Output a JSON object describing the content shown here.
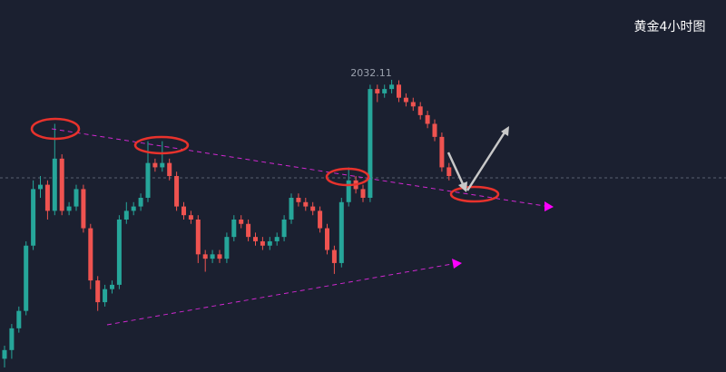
{
  "chart_data": {
    "type": "candlestick",
    "title": "黄金4小时图",
    "open": [
      1968,
      1970,
      1975,
      1979,
      1994,
      2007,
      2008,
      2002,
      2014,
      2002,
      2003,
      2007,
      1998,
      1986,
      1981,
      1984,
      1985,
      2000,
      2002,
      2003,
      2005,
      2013,
      2012,
      2013,
      2010,
      2003,
      2001,
      2000,
      1992,
      1991,
      1992,
      1991,
      1996,
      2000,
      1999,
      1996,
      1995,
      1994,
      1995,
      1996,
      2000,
      2005,
      2004,
      2003,
      2002,
      1998,
      1993,
      1990,
      2004,
      2009,
      2007,
      2005,
      2030,
      2029,
      2030,
      2031,
      2028,
      2027,
      2026,
      2024,
      2022,
      2019,
      2012
    ],
    "high": [
      1971,
      1976,
      1980,
      1995,
      2009,
      2010,
      2009,
      2022,
      2015,
      2004,
      2008,
      2008,
      1999,
      1987,
      1985,
      1986,
      2001,
      2004,
      2004,
      2006,
      2018,
      2014,
      2018,
      2014,
      2011,
      2004,
      2002,
      2001,
      1993,
      1993,
      1993,
      1997,
      2001,
      2001,
      2000,
      1997,
      1996,
      1996,
      1997,
      2001,
      2006,
      2006,
      2005,
      2004,
      2003,
      1999,
      1994,
      2005,
      2012,
      2010,
      2008,
      2031,
      2031,
      2031,
      2032.11,
      2032,
      2029,
      2028,
      2027,
      2025,
      2023,
      2020,
      2013
    ],
    "low": [
      1966,
      1968,
      1974,
      1978,
      1993,
      2005,
      2000,
      2001,
      2001,
      2001,
      2002,
      1997,
      1984,
      1979,
      1980,
      1983,
      1984,
      1999,
      2001,
      2002,
      2004,
      2011,
      2011,
      2009,
      2002,
      2000,
      1999,
      1990,
      1988,
      1990,
      1990,
      1990,
      1995,
      1998,
      1995,
      1994,
      1993,
      1993,
      1994,
      1995,
      1999,
      2003,
      2002,
      2001,
      1997,
      1992,
      1987.5,
      1989,
      2003,
      2006,
      2004,
      2004,
      2027,
      2028,
      2029,
      2027,
      2026,
      2025,
      2023,
      2021,
      2018,
      2011,
      2009
    ],
    "close": [
      1970,
      1975,
      1979,
      1994,
      2007,
      2008,
      2002,
      2014,
      2002,
      2003,
      2007,
      1998,
      1986,
      1981,
      1984,
      1985,
      2000,
      2002,
      2003,
      2005,
      2013,
      2012,
      2013,
      2010,
      2003,
      2001,
      2000,
      1992,
      1991,
      1992,
      1991,
      1996,
      2000,
      1999,
      1996,
      1995,
      1994,
      1995,
      1996,
      2000,
      2005,
      2004,
      2003,
      2002,
      1998,
      1993,
      1990,
      2004,
      2009,
      2007,
      2005,
      2030,
      2029,
      2030,
      2031,
      2028,
      2027,
      2026,
      2024,
      2022,
      2019,
      2012,
      2010
    ],
    "up_color": "#26a69a",
    "down_color": "#ef5350"
  }
}
